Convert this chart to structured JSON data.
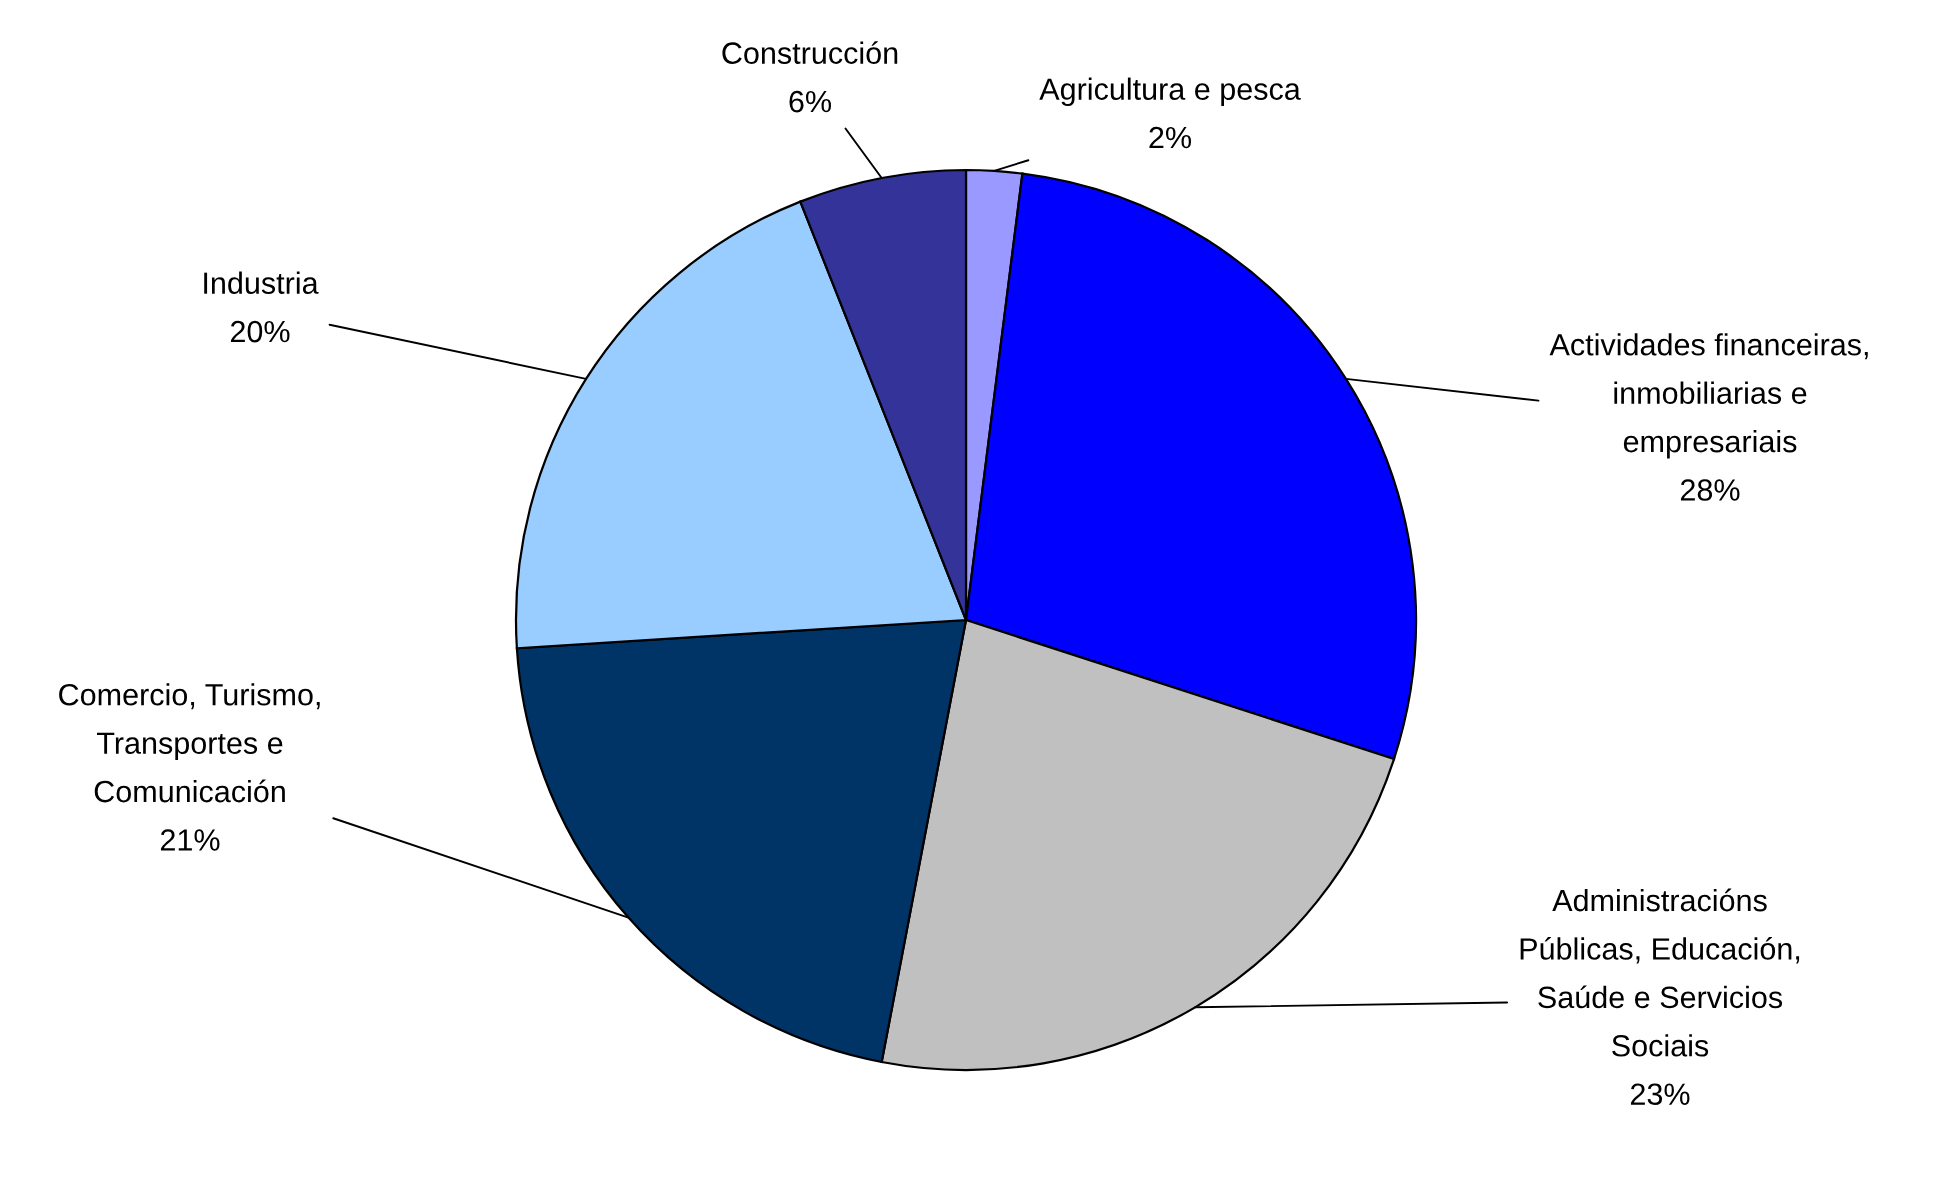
{
  "chart_data": {
    "type": "pie",
    "categories": [
      "Agricultura e pesca",
      "Actividades financeiras,\ninmobiliarias e\nempresariais",
      "Administracións\nPúblicas, Educación,\nSaúde e Servicios\nSociais",
      "Comercio, Turismo,\nTransportes e\nComunicación",
      "Industria",
      "Construcción"
    ],
    "values": [
      2,
      28,
      23,
      21,
      20,
      6
    ],
    "value_labels": [
      "2%",
      "28%",
      "23%",
      "21%",
      "20%",
      "6%"
    ],
    "colors": [
      "#9999ff",
      "#0000ff",
      "#c0c0c0",
      "#003366",
      "#99ccff",
      "#333399"
    ]
  }
}
